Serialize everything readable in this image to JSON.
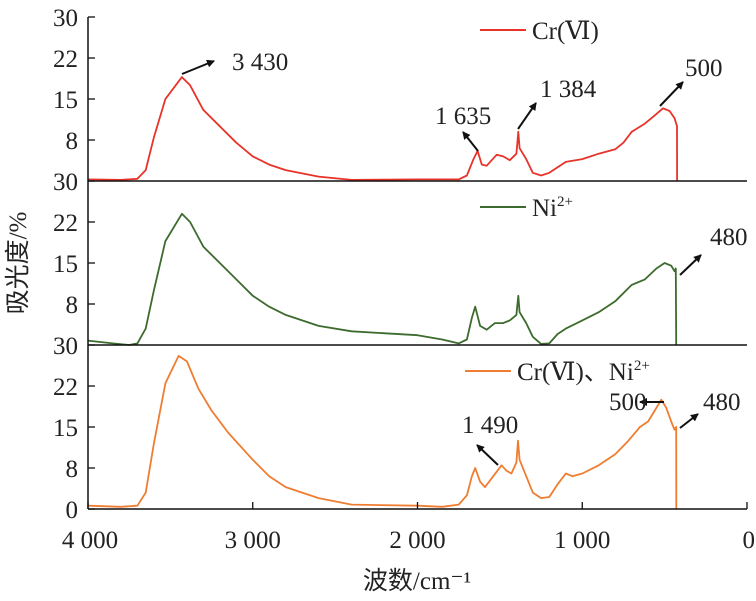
{
  "chart_data": {
    "type": "line",
    "xlabel": "波数/cm⁻¹",
    "ylabel": "吸光度/%",
    "xlim": [
      4000,
      0
    ],
    "x_ticks": [
      4000,
      3000,
      2000,
      1000,
      0
    ],
    "x_tick_labels": [
      "4 000",
      "3 000",
      "2 000",
      "1 000",
      "0"
    ],
    "y_ticks": [
      0,
      8,
      15,
      22,
      30
    ],
    "ylim": [
      0,
      30
    ],
    "panels": [
      {
        "name": "Cr(Ⅵ)",
        "legend_base": "Cr(Ⅵ)",
        "legend_sup": "",
        "color": "#e8332a",
        "y_tick_labels": [
          "8",
          "15",
          "22",
          "30"
        ],
        "points": [
          [
            4000,
            0.3
          ],
          [
            3800,
            0.2
          ],
          [
            3700,
            0.4
          ],
          [
            3650,
            2
          ],
          [
            3600,
            8
          ],
          [
            3530,
            15
          ],
          [
            3430,
            19
          ],
          [
            3380,
            17.5
          ],
          [
            3300,
            13
          ],
          [
            3200,
            10
          ],
          [
            3100,
            7
          ],
          [
            3000,
            4.5
          ],
          [
            2900,
            3
          ],
          [
            2800,
            2
          ],
          [
            2600,
            0.8
          ],
          [
            2400,
            0.2
          ],
          [
            2000,
            0.3
          ],
          [
            1750,
            0.3
          ],
          [
            1700,
            1
          ],
          [
            1660,
            4
          ],
          [
            1635,
            5.5
          ],
          [
            1610,
            3
          ],
          [
            1580,
            2.8
          ],
          [
            1520,
            4.8
          ],
          [
            1480,
            4.5
          ],
          [
            1440,
            3.8
          ],
          [
            1400,
            5
          ],
          [
            1388,
            9
          ],
          [
            1380,
            6
          ],
          [
            1340,
            4
          ],
          [
            1300,
            1.5
          ],
          [
            1250,
            1
          ],
          [
            1200,
            1.5
          ],
          [
            1100,
            3.5
          ],
          [
            1000,
            4
          ],
          [
            900,
            5
          ],
          [
            800,
            5.8
          ],
          [
            750,
            7
          ],
          [
            700,
            9
          ],
          [
            620,
            10.5
          ],
          [
            560,
            12
          ],
          [
            510,
            13.3
          ],
          [
            470,
            12.8
          ],
          [
            440,
            11.5
          ],
          [
            425,
            10
          ],
          [
            424,
            0
          ]
        ],
        "annotations": [
          {
            "text": "3 430",
            "x": 3430,
            "y": 19
          },
          {
            "text": "1 635",
            "x": 1635,
            "y": 5.5
          },
          {
            "text": "1 384",
            "x": 1384,
            "y": 9
          },
          {
            "text": "500",
            "x": 500,
            "y": 13.3
          }
        ]
      },
      {
        "name": "Ni²⁺",
        "legend_base": "Ni",
        "legend_sup": "2+",
        "color": "#3d6b2e",
        "y_tick_labels": [
          "8",
          "15",
          "22",
          "30"
        ],
        "points": [
          [
            4000,
            0.8
          ],
          [
            3850,
            0.3
          ],
          [
            3750,
            0
          ],
          [
            3700,
            0.3
          ],
          [
            3650,
            3
          ],
          [
            3600,
            10
          ],
          [
            3530,
            19
          ],
          [
            3430,
            24
          ],
          [
            3380,
            22.5
          ],
          [
            3300,
            18
          ],
          [
            3200,
            15
          ],
          [
            3100,
            12
          ],
          [
            3000,
            9
          ],
          [
            2900,
            7
          ],
          [
            2800,
            5.5
          ],
          [
            2600,
            3.5
          ],
          [
            2400,
            2.5
          ],
          [
            2000,
            1.8
          ],
          [
            1850,
            1
          ],
          [
            1750,
            0.3
          ],
          [
            1700,
            1
          ],
          [
            1670,
            5
          ],
          [
            1650,
            7
          ],
          [
            1620,
            3.5
          ],
          [
            1580,
            2.8
          ],
          [
            1530,
            4
          ],
          [
            1480,
            4
          ],
          [
            1440,
            4.5
          ],
          [
            1400,
            5.5
          ],
          [
            1388,
            9
          ],
          [
            1380,
            6
          ],
          [
            1340,
            4
          ],
          [
            1300,
            1.5
          ],
          [
            1250,
            0.2
          ],
          [
            1200,
            0.3
          ],
          [
            1150,
            2
          ],
          [
            1100,
            3
          ],
          [
            1000,
            4.5
          ],
          [
            900,
            6
          ],
          [
            800,
            8
          ],
          [
            700,
            11
          ],
          [
            620,
            12
          ],
          [
            550,
            14
          ],
          [
            500,
            15
          ],
          [
            460,
            14.5
          ],
          [
            440,
            13.5
          ],
          [
            432,
            14
          ],
          [
            430,
            0
          ]
        ],
        "annotations": [
          {
            "text": "480",
            "x": 480,
            "y": 14.5
          }
        ]
      },
      {
        "name": "Cr(Ⅵ)、Ni²⁺",
        "legend_base": "Cr(Ⅵ)、Ni",
        "legend_sup": "2+",
        "color": "#ef7d31",
        "y_tick_labels": [
          "0",
          "8",
          "15",
          "22",
          "30"
        ],
        "points": [
          [
            4000,
            0.6
          ],
          [
            3800,
            0.4
          ],
          [
            3700,
            0.6
          ],
          [
            3650,
            3
          ],
          [
            3600,
            12
          ],
          [
            3530,
            23
          ],
          [
            3450,
            28
          ],
          [
            3400,
            27
          ],
          [
            3330,
            22
          ],
          [
            3250,
            18
          ],
          [
            3150,
            14
          ],
          [
            3000,
            9
          ],
          [
            2900,
            6
          ],
          [
            2800,
            4
          ],
          [
            2600,
            2
          ],
          [
            2400,
            0.8
          ],
          [
            2000,
            0.6
          ],
          [
            1850,
            0.4
          ],
          [
            1750,
            0.8
          ],
          [
            1700,
            2.5
          ],
          [
            1670,
            6
          ],
          [
            1650,
            7.5
          ],
          [
            1620,
            5
          ],
          [
            1590,
            4
          ],
          [
            1540,
            6
          ],
          [
            1490,
            8
          ],
          [
            1460,
            7
          ],
          [
            1430,
            6.5
          ],
          [
            1400,
            8.5
          ],
          [
            1390,
            12.5
          ],
          [
            1380,
            9
          ],
          [
            1340,
            6
          ],
          [
            1300,
            3
          ],
          [
            1250,
            2
          ],
          [
            1200,
            2.2
          ],
          [
            1150,
            4.5
          ],
          [
            1100,
            6.5
          ],
          [
            1060,
            6
          ],
          [
            1000,
            6.5
          ],
          [
            900,
            8
          ],
          [
            800,
            10
          ],
          [
            720,
            12.5
          ],
          [
            650,
            15
          ],
          [
            600,
            16
          ],
          [
            560,
            18
          ],
          [
            520,
            20
          ],
          [
            490,
            18.5
          ],
          [
            460,
            16
          ],
          [
            440,
            14.5
          ],
          [
            430,
            15
          ],
          [
            429,
            0
          ]
        ],
        "annotations": [
          {
            "text": "1 490",
            "x": 1490,
            "y": 8
          },
          {
            "text": "500",
            "x": 500,
            "y": 20
          },
          {
            "text": "480",
            "x": 480,
            "y": 15
          }
        ]
      }
    ]
  }
}
